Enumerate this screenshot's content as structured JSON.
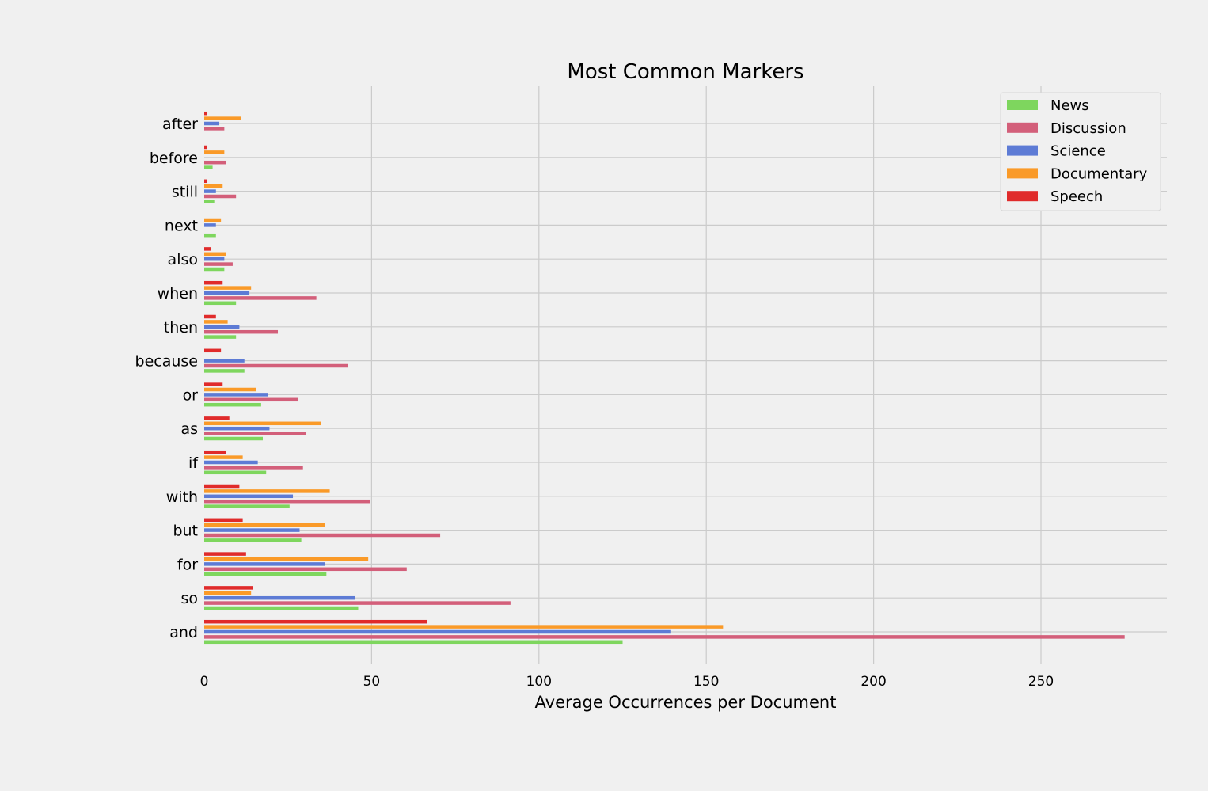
{
  "chart_data": {
    "type": "bar",
    "orientation": "horizontal",
    "title": "Most Common Markers",
    "xlabel": "Average Occurrences per Document",
    "ylabel": "",
    "xlim": [
      0,
      287
    ],
    "xticks": [
      0,
      50,
      100,
      150,
      200,
      250
    ],
    "grid": true,
    "legend_position": "top-right",
    "categories": [
      "and",
      "so",
      "for",
      "but",
      "with",
      "if",
      "as",
      "or",
      "because",
      "then",
      "when",
      "also",
      "next",
      "still",
      "before",
      "after"
    ],
    "series": [
      {
        "name": "News",
        "color": "#7ed65e",
        "values": [
          125,
          46,
          36.5,
          29,
          25.5,
          18.5,
          17.5,
          17,
          12,
          9.5,
          9.5,
          6,
          3.5,
          3,
          2.5,
          0
        ]
      },
      {
        "name": "Discussion",
        "color": "#d35f7a",
        "values": [
          275,
          91.5,
          60.5,
          70.5,
          49.5,
          29.5,
          30.5,
          28,
          43,
          22,
          33.5,
          8.5,
          0,
          9.5,
          6.5,
          6
        ]
      },
      {
        "name": "Science",
        "color": "#5d7bd5",
        "values": [
          139.5,
          45,
          36,
          28.5,
          26.5,
          16,
          19.5,
          19,
          12,
          10.5,
          13.5,
          6,
          3.5,
          3.5,
          0,
          4.5
        ]
      },
      {
        "name": "Documentary",
        "color": "#fa9a28",
        "values": [
          155,
          14,
          49,
          36,
          37.5,
          11.5,
          35,
          15.5,
          0,
          7,
          14,
          6.5,
          5,
          5.5,
          6,
          11
        ]
      },
      {
        "name": "Speech",
        "color": "#e02b2b",
        "values": [
          66.5,
          14.5,
          12.5,
          11.5,
          10.5,
          6.5,
          7.5,
          5.5,
          5,
          3.5,
          5.5,
          2,
          0,
          0.8,
          0.8,
          0.8
        ]
      }
    ]
  }
}
